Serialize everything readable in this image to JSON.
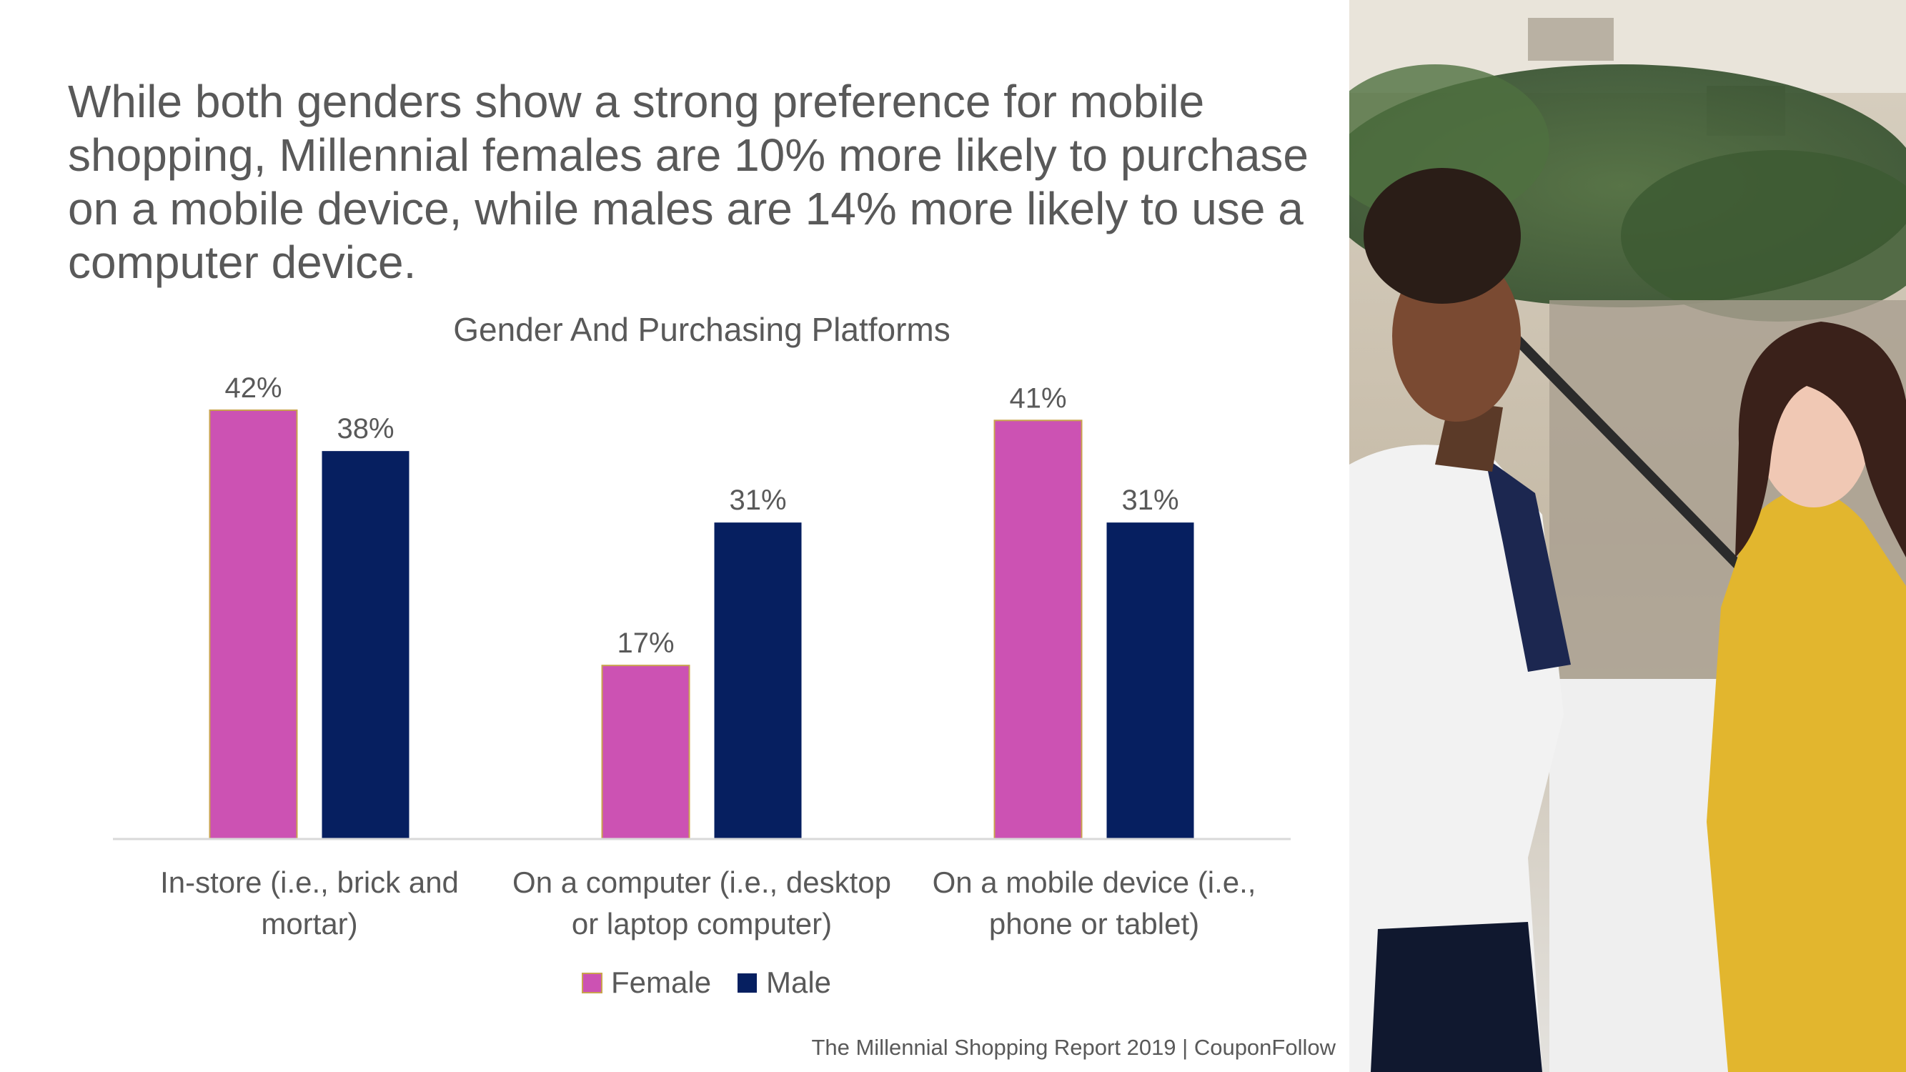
{
  "slide": {
    "headline": "While both genders show a strong preference for mobile shopping, Millennial females are 10% more likely to purchase on a mobile device, while males are 14% more likely to use a computer device.",
    "footer": "The Millennial Shopping Report 2019 | CouponFollow"
  },
  "colors": {
    "female": "#CC52B3",
    "male": "#061F60",
    "text": "#595959",
    "axis": "#D9D9D9"
  },
  "chart_data": {
    "type": "bar",
    "title": "Gender And Purchasing Platforms",
    "categories": [
      [
        "In-store (i.e., brick and",
        "mortar)"
      ],
      [
        "On a computer (i.e., desktop",
        "or laptop computer)"
      ],
      [
        "On a mobile device (i.e.,",
        "phone or tablet)"
      ]
    ],
    "series": [
      {
        "name": "Female",
        "values": [
          42,
          17,
          41
        ],
        "labels": [
          "42%",
          "17%",
          "41%"
        ]
      },
      {
        "name": "Male",
        "values": [
          38,
          31,
          31
        ],
        "labels": [
          "38%",
          "31%",
          "31%"
        ]
      }
    ],
    "xlabel": "",
    "ylabel": "",
    "ylim": [
      0,
      42
    ],
    "legend_position": "bottom",
    "grid": false
  }
}
